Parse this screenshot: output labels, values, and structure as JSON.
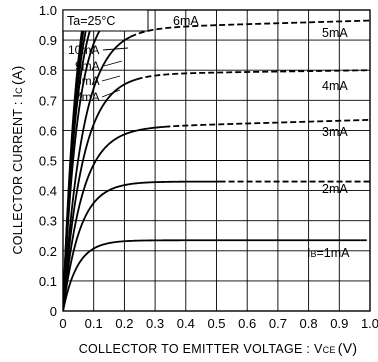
{
  "chart_data": {
    "type": "line",
    "xlabel": "COLLECTOR TO EMITTER VOLTAGE : V",
    "xlabel_sub": "CE",
    "xlabel_unit": "(V)",
    "ylabel": "COLLECTOR CURRENT : I",
    "ylabel_sub": "C",
    "ylabel_unit": "(A)",
    "xlim": [
      0,
      1.0
    ],
    "ylim": [
      0,
      1.0
    ],
    "xticks": [
      "0",
      "0.1",
      "0.2",
      "0.3",
      "0.4",
      "0.5",
      "0.6",
      "0.7",
      "0.8",
      "0.9",
      "1.0"
    ],
    "yticks": [
      "0",
      "0.1",
      "0.2",
      "0.3",
      "0.4",
      "0.5",
      "0.6",
      "0.7",
      "0.8",
      "0.9",
      "1.0"
    ],
    "grid": true,
    "condition_label": "Ta=25°C",
    "ib_prefix": "I",
    "ib_sub": "B",
    "series": [
      {
        "name": "=1mA",
        "sat": 0.235,
        "knee": 0.21,
        "dash_from": 0.97,
        "prefix_ib": true
      },
      {
        "name": "2mA",
        "sat": 0.43,
        "knee": 0.25,
        "dash_from": 0.51
      },
      {
        "name": "3mA",
        "sat": 0.605,
        "knee": 0.28,
        "dash_from": 0.33,
        "end": 0.635
      },
      {
        "name": "4mA",
        "sat": 0.785,
        "knee": 0.29,
        "dash_from": 0.24,
        "end": 0.8
      },
      {
        "name": "5mA",
        "sat": 0.935,
        "knee": 0.29,
        "dash_from": 0.22,
        "end": 0.965
      },
      {
        "name": "6mA",
        "sat": 1.02,
        "knee": 0.22,
        "dash_from": 0.205
      },
      {
        "name": "7mA",
        "sat": 1.1,
        "knee": 0.21,
        "dash_from": 0.205
      },
      {
        "name": "8mA",
        "sat": 1.18,
        "knee": 0.215,
        "dash_from": 0.205
      },
      {
        "name": "9mA",
        "sat": 1.25,
        "knee": 0.22,
        "dash_from": 0.205
      },
      {
        "name": "10mA",
        "sat": 1.3,
        "knee": 0.22,
        "dash_from": 0.205
      }
    ]
  }
}
